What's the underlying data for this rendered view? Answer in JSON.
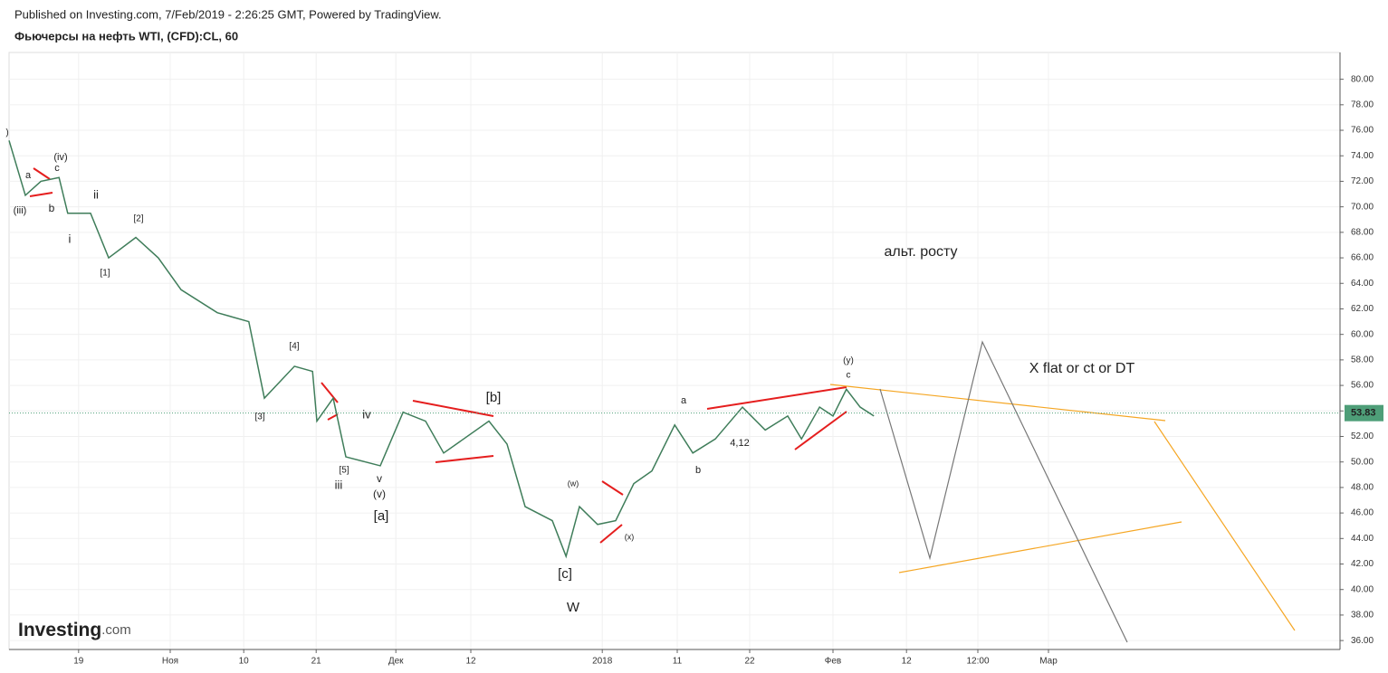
{
  "header": {
    "published": "Published on Investing.com, 7/Feb/2019 - 2:26:25 GMT, Powered by TradingView.",
    "logo_main": "Investing",
    "logo_suffix": ".com"
  },
  "chart_data": {
    "type": "line",
    "title": "Фьючерсы на нефть WTI, (CFD):CL, 60",
    "x": [
      0,
      2.25,
      4.4,
      6.9,
      8.1,
      11.25,
      13.75,
      17.5,
      20.6,
      23.75,
      28.75,
      33.1,
      35.25,
      39.4,
      41.9,
      42.5,
      44.75,
      46.5,
      51.25,
      54.4,
      57.5,
      60,
      66.25,
      68.75,
      71.25,
      75,
      76.9,
      78.75,
      81.25,
      83.75,
      86.25,
      88.75,
      91.9,
      94.4,
      97.5,
      101.25,
      104.4,
      107.5,
      109.4,
      111.9,
      113.75,
      115.6,
      117.5,
      119.4
    ],
    "series": [
      {
        "color": "#3f7d5a",
        "values": [
          75.2,
          70.9,
          72.0,
          72.3,
          69.5,
          69.5,
          66.0,
          67.6,
          66.0,
          63.5,
          61.7,
          61.0,
          55.0,
          57.5,
          57.1,
          53.2,
          55.0,
          50.4,
          49.7,
          53.9,
          53.2,
          50.7,
          53.2,
          51.4,
          46.5,
          45.4,
          42.6,
          46.5,
          45.1,
          45.4,
          48.3,
          49.3,
          52.9,
          50.7,
          51.8,
          54.3,
          52.5,
          53.6,
          51.8,
          54.3,
          53.6,
          55.7,
          54.3,
          53.6
        ]
      }
    ],
    "last_price": {
      "value": 53.83,
      "label": "53.83",
      "color": "#4e9e78"
    },
    "xlim": [
      0,
      183.75
    ],
    "xticks": [
      {
        "value": 9.6,
        "label": "19"
      },
      {
        "value": 22.25,
        "label": "Ноя"
      },
      {
        "value": 32.4,
        "label": "10"
      },
      {
        "value": 42.4,
        "label": "21"
      },
      {
        "value": 53.4,
        "label": "Дек"
      },
      {
        "value": 63.75,
        "label": "12"
      },
      {
        "value": 81.9,
        "label": "2018"
      },
      {
        "value": 92.25,
        "label": "11"
      },
      {
        "value": 102.25,
        "label": "22"
      },
      {
        "value": 113.75,
        "label": "Фев"
      },
      {
        "value": 123.9,
        "label": "12"
      },
      {
        "value": 133.75,
        "label": "12:00"
      },
      {
        "value": 143.5,
        "label": "Мар"
      }
    ],
    "ylim": [
      35.3,
      82.1
    ],
    "yticks": [
      {
        "value": 36,
        "label": "36.00"
      },
      {
        "value": 38,
        "label": "38.00"
      },
      {
        "value": 40,
        "label": "40.00"
      },
      {
        "value": 42,
        "label": "42.00"
      },
      {
        "value": 44,
        "label": "44.00"
      },
      {
        "value": 46,
        "label": "46.00"
      },
      {
        "value": 48,
        "label": "48.00"
      },
      {
        "value": 50,
        "label": "50.00"
      },
      {
        "value": 52,
        "label": "52.00"
      },
      {
        "value": 54,
        "label": "54.00"
      },
      {
        "value": 56,
        "label": "56.00"
      },
      {
        "value": 58,
        "label": "58.00"
      },
      {
        "value": 60,
        "label": "60.00"
      },
      {
        "value": 62,
        "label": "62.00"
      },
      {
        "value": 64,
        "label": "64.00"
      },
      {
        "value": 66,
        "label": "66.00"
      },
      {
        "value": 68,
        "label": "68.00"
      },
      {
        "value": 70,
        "label": "70.00"
      },
      {
        "value": 72,
        "label": "72.00"
      },
      {
        "value": 74,
        "label": "74.00"
      },
      {
        "value": 76,
        "label": "76.00"
      },
      {
        "value": 78,
        "label": "78.00"
      },
      {
        "value": 80,
        "label": "80.00"
      }
    ],
    "grid": true,
    "annotations": [
      ")",
      "a",
      "c",
      "(iv)",
      "(iii)",
      "b",
      "ii",
      "i",
      "[2]",
      "[1]",
      "[4]",
      "[3]",
      "iv",
      "[5]",
      "v",
      "iii",
      "(v)",
      "[a]",
      "[b]",
      "(w)",
      "(x)",
      "[c]",
      "W",
      "a",
      "b",
      "4,12",
      "(y)",
      "c",
      "альт. росту",
      "X flat or ct or DT"
    ]
  }
}
